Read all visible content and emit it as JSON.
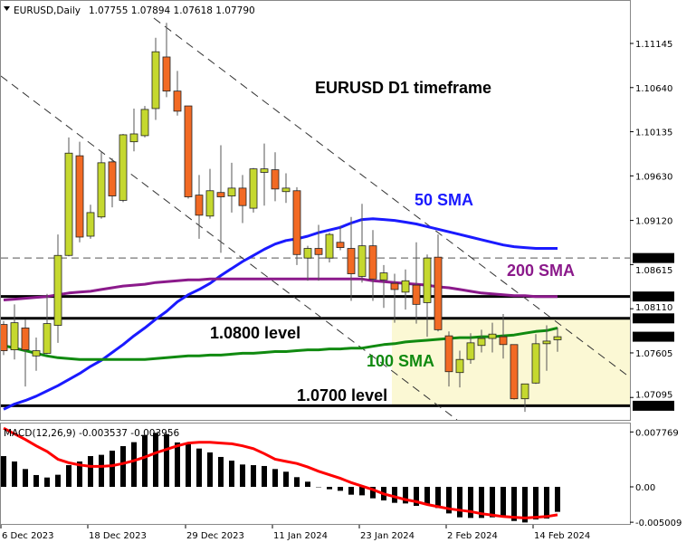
{
  "header": {
    "symbol_label": "EURUSD,Daily",
    "ohlc": "1.07755 1.07894 1.07618 1.07790",
    "menu_icon": "triangle-down-icon"
  },
  "indicator_label": "MACD(12,26,9) -0.003537 -0.003956",
  "annotations": {
    "title": "EURUSD D1 timeframe",
    "sma50": "50 SMA",
    "sma200": "200 SMA",
    "sma100": "100 SMA",
    "level_1080": "1.0800 level",
    "level_1070": "1.0700 level"
  },
  "colors": {
    "bull": "#c5d82f",
    "bear": "#f26a24",
    "sma50": "#1a1aff",
    "sma100": "#108a10",
    "sma200": "#8b1a8b",
    "signal": "#ff0000",
    "zone": "#fbf8d4"
  },
  "chart_data": [
    {
      "type": "candlestick",
      "title": "EURUSD D1 timeframe",
      "symbol": "EURUSD",
      "timeframe": "Daily",
      "x_tick_labels": [
        {
          "label": "6 Dec 2023",
          "bar": 0
        },
        {
          "label": "18 Dec 2023",
          "bar": 8
        },
        {
          "label": "29 Dec 2023",
          "bar": 17
        },
        {
          "label": "11 Jan 2024",
          "bar": 25
        },
        {
          "label": "23 Jan 2024",
          "bar": 33
        },
        {
          "label": "2 Feb 2024",
          "bar": 41
        },
        {
          "label": "14 Feb 2024",
          "bar": 49
        }
      ],
      "y_tick_labels": [
        "1.11145",
        "1.10640",
        "1.10135",
        "1.09630",
        "1.09120",
        "1.08615",
        "1.08110",
        "1.07605",
        "1.07095"
      ],
      "highlighted_prices": [
        "1.08690",
        "1.08250",
        "1.08000",
        "1.07790",
        "1.07000"
      ],
      "ylim": [
        1.0665,
        1.1163
      ],
      "ohlc": [
        [
          1.0793,
          1.0797,
          1.0758,
          1.0763
        ],
        [
          1.0764,
          1.0816,
          1.0753,
          1.0795
        ],
        [
          1.0789,
          1.0799,
          1.0722,
          1.0764
        ],
        [
          1.0757,
          1.0778,
          1.074,
          1.0763
        ],
        [
          1.076,
          1.0828,
          1.0759,
          1.0794
        ],
        [
          1.0792,
          1.0896,
          1.0772,
          1.0872
        ],
        [
          1.0872,
          1.1007,
          1.0871,
          1.0989
        ],
        [
          1.0986,
          1.1002,
          1.0887,
          1.0893
        ],
        [
          1.0894,
          1.093,
          1.0891,
          1.0921
        ],
        [
          1.0916,
          1.099,
          1.0914,
          1.0978
        ],
        [
          1.0979,
          1.0983,
          1.0927,
          1.094
        ],
        [
          1.0935,
          1.1011,
          1.0933,
          1.101
        ],
        [
          1.1002,
          1.104,
          1.0991,
          1.1011
        ],
        [
          1.1009,
          1.1043,
          1.1007,
          1.1039
        ],
        [
          1.104,
          1.1121,
          1.1027,
          1.1105
        ],
        [
          1.1099,
          1.1138,
          1.1053,
          1.106
        ],
        [
          1.106,
          1.1083,
          1.1032,
          1.1037
        ],
        [
          1.1043,
          1.1043,
          1.0937,
          1.0939
        ],
        [
          1.0941,
          1.0964,
          1.0891,
          1.0918
        ],
        [
          1.0917,
          1.0971,
          1.0914,
          1.0946
        ],
        [
          1.0944,
          1.0998,
          1.0875,
          1.0939
        ],
        [
          1.094,
          1.0978,
          1.0921,
          1.0949
        ],
        [
          1.0949,
          1.0964,
          1.0909,
          1.0929
        ],
        [
          1.0926,
          1.0972,
          1.0921,
          1.0971
        ],
        [
          1.0967,
          1.1,
          1.0929,
          1.0971
        ],
        [
          1.097,
          1.099,
          1.0934,
          1.0948
        ],
        [
          1.0945,
          1.0966,
          1.0932,
          1.0949
        ],
        [
          1.0946,
          1.095,
          1.0861,
          1.0873
        ],
        [
          1.0869,
          1.0883,
          1.0843,
          1.088
        ],
        [
          1.088,
          1.0907,
          1.0843,
          1.0873
        ],
        [
          1.0869,
          1.0898,
          1.0864,
          1.0896
        ],
        [
          1.0887,
          1.0906,
          1.0878,
          1.0881
        ],
        [
          1.088,
          1.0916,
          1.082,
          1.0851
        ],
        [
          1.0848,
          1.0931,
          1.0841,
          1.0883
        ],
        [
          1.0883,
          1.0901,
          1.082,
          1.0845
        ],
        [
          1.0844,
          1.0861,
          1.0812,
          1.0852
        ],
        [
          1.084,
          1.0851,
          1.0795,
          1.0833
        ],
        [
          1.083,
          1.0856,
          1.081,
          1.0843
        ],
        [
          1.0838,
          1.0887,
          1.0794,
          1.0816
        ],
        [
          1.0818,
          1.0873,
          1.0779,
          1.0869
        ],
        [
          1.087,
          1.0896,
          1.0785,
          1.0787
        ],
        [
          1.078,
          1.0785,
          1.0722,
          1.0739
        ],
        [
          1.0738,
          1.0763,
          1.0721,
          1.0753
        ],
        [
          1.0753,
          1.0783,
          1.0748,
          1.0772
        ],
        [
          1.0769,
          1.0787,
          1.0761,
          1.0777
        ],
        [
          1.0777,
          1.0795,
          1.0761,
          1.0782
        ],
        [
          1.0779,
          1.0805,
          1.0754,
          1.077
        ],
        [
          1.077,
          1.077,
          1.0707,
          1.0708
        ],
        [
          1.0708,
          1.0725,
          1.0693,
          1.0725
        ],
        [
          1.0726,
          1.0782,
          1.0725,
          1.0771
        ],
        [
          1.0771,
          1.0792,
          1.074,
          1.0774
        ],
        [
          1.07755,
          1.07894,
          1.07618,
          1.0779
        ]
      ],
      "moving_averages": [
        {
          "name": "50 SMA",
          "values": [
            1.0696,
            1.0702,
            1.0706,
            1.0711,
            1.0717,
            1.0723,
            1.073,
            1.0737,
            1.0745,
            1.0752,
            1.0761,
            1.077,
            1.078,
            1.0789,
            1.0799,
            1.0808,
            1.0819,
            1.0827,
            1.0833,
            1.084,
            1.0849,
            1.0857,
            1.0865,
            1.0872,
            1.0879,
            1.0885,
            1.0889,
            1.0891,
            1.0894,
            1.0898,
            1.0901,
            1.0904,
            1.0909,
            1.0913,
            1.0914,
            1.0913,
            1.0912,
            1.091,
            1.0908,
            1.0905,
            1.0902,
            1.0899,
            1.0896,
            1.0893,
            1.089,
            1.0887,
            1.0884,
            1.0882,
            1.0881,
            1.088,
            1.088,
            1.088
          ]
        },
        {
          "name": "100 SMA",
          "values": [
            1.0769,
            1.0766,
            1.0763,
            1.076,
            1.0757,
            1.0755,
            1.0754,
            1.0753,
            1.0753,
            1.0753,
            1.0753,
            1.0753,
            1.0753,
            1.0753,
            1.0754,
            1.0755,
            1.0756,
            1.0757,
            1.0757,
            1.0758,
            1.0758,
            1.0759,
            1.076,
            1.076,
            1.0761,
            1.0762,
            1.0762,
            1.0763,
            1.0764,
            1.0764,
            1.0765,
            1.0765,
            1.0766,
            1.0766,
            1.0768,
            1.077,
            1.0771,
            1.0773,
            1.0774,
            1.0775,
            1.0776,
            1.0777,
            1.0778,
            1.0778,
            1.0779,
            1.0779,
            1.078,
            1.0781,
            1.0783,
            1.0785,
            1.0786,
            1.0789
          ]
        },
        {
          "name": "200 SMA",
          "values": [
            1.0821,
            1.0822,
            1.0823,
            1.0824,
            1.0825,
            1.0827,
            1.0829,
            1.083,
            1.0831,
            1.0833,
            1.0835,
            1.0837,
            1.0838,
            1.0839,
            1.0841,
            1.0842,
            1.0843,
            1.0844,
            1.0844,
            1.0845,
            1.0845,
            1.0845,
            1.0845,
            1.0845,
            1.0845,
            1.0845,
            1.0845,
            1.0845,
            1.0845,
            1.0845,
            1.0845,
            1.0845,
            1.0845,
            1.0845,
            1.0843,
            1.0842,
            1.0841,
            1.084,
            1.0839,
            1.0838,
            1.0836,
            1.0835,
            1.0833,
            1.0831,
            1.0829,
            1.0828,
            1.0827,
            1.0826,
            1.0826,
            1.0825,
            1.0825,
            1.0825
          ]
        }
      ],
      "horizontal_levels": [
        {
          "price": 1.0869,
          "style": "dashed"
        },
        {
          "price": 1.0825,
          "style": "solid"
        },
        {
          "price": 1.08,
          "style": "solid"
        },
        {
          "price": 1.07,
          "style": "solid"
        }
      ],
      "zone": {
        "from_bar": 36,
        "price_top": 1.08,
        "price_bottom": 1.07
      }
    },
    {
      "type": "bar",
      "title": "MACD(12,26,9)",
      "y_tick_labels": [
        "0.007769",
        "0.00",
        "-0.005009"
      ],
      "ylim": [
        -0.005009,
        0.007769
      ],
      "histogram": [
        0.00435,
        0.00359,
        0.00252,
        0.00167,
        0.00132,
        0.00171,
        0.00307,
        0.00359,
        0.00435,
        0.00453,
        0.00512,
        0.00576,
        0.00632,
        0.00734,
        0.00764,
        0.00747,
        0.00628,
        0.00602,
        0.00542,
        0.00487,
        0.00423,
        0.00371,
        0.00316,
        0.00307,
        0.00295,
        0.00252,
        0.00214,
        0.00137,
        0.00073,
        -0.0001,
        -0.00034,
        -0.00056,
        -0.00111,
        -0.0012,
        -0.00162,
        -0.00192,
        -0.00226,
        -0.00235,
        -0.00269,
        -0.00248,
        -0.00299,
        -0.00376,
        -0.00431,
        -0.0044,
        -0.0044,
        -0.00431,
        -0.00431,
        -0.00483,
        -0.00504,
        -0.00461,
        -0.00448,
        -0.003537
      ],
      "signal": [
        0.0083,
        0.0075,
        0.0067,
        0.0058,
        0.005,
        0.0039,
        0.0034,
        0.0031,
        0.0029,
        0.0029,
        0.003,
        0.0033,
        0.0037,
        0.0042,
        0.0048,
        0.0053,
        0.0058,
        0.0062,
        0.0063,
        0.0063,
        0.0062,
        0.0061,
        0.0058,
        0.0054,
        0.0047,
        0.0039,
        0.0036,
        0.0033,
        0.0028,
        0.0022,
        0.0017,
        0.0012,
        0.0006,
        0.0001,
        -0.0004,
        -0.001,
        -0.0014,
        -0.0018,
        -0.0021,
        -0.0025,
        -0.0028,
        -0.0031,
        -0.0033,
        -0.0035,
        -0.0038,
        -0.004,
        -0.0042,
        -0.0043,
        -0.0044,
        -0.0043,
        -0.0042,
        -0.003956
      ]
    }
  ]
}
